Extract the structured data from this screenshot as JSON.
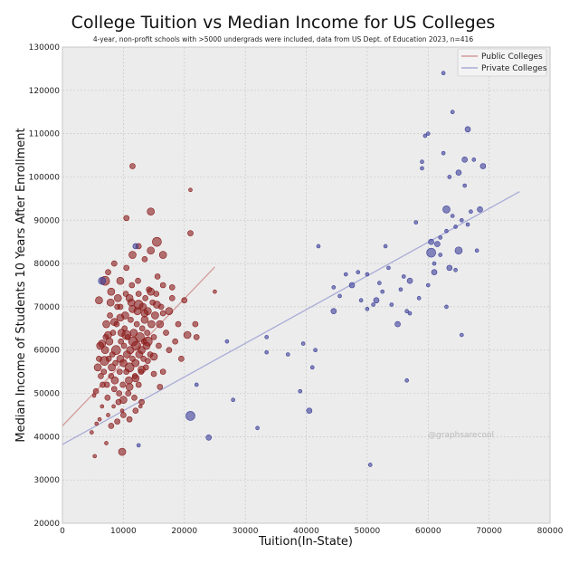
{
  "chart_data": {
    "type": "scatter",
    "title": "College Tuition vs Median Income for US Colleges",
    "subtitle": "4-year, non-profit schools with >5000 undergrads were included, data from US Dept. of Education 2023, n=416",
    "xlabel": "Tuition(In-State)",
    "ylabel": "Median Income of Students 10 Years After Enrollment",
    "xlim": [
      0,
      80000
    ],
    "ylim": [
      20000,
      130000
    ],
    "xticks": [
      "0",
      "10000",
      "20000",
      "30000",
      "40000",
      "50000",
      "60000",
      "70000",
      "80000"
    ],
    "yticks": [
      "20000",
      "30000",
      "40000",
      "50000",
      "60000",
      "70000",
      "80000",
      "90000",
      "100000",
      "110000",
      "120000",
      "130000"
    ],
    "grid": true,
    "legend_position": "top-right",
    "watermark": "@graphsarecool",
    "series": [
      {
        "name": "Public Colleges",
        "color": "#8b1a1a",
        "trend_color": "#d49a9a",
        "trend": [
          [
            0,
            42500
          ],
          [
            25000,
            79200
          ]
        ],
        "points": [
          [
            5200,
            49500,
            2
          ],
          [
            5500,
            50500,
            3
          ],
          [
            5800,
            56000,
            4
          ],
          [
            6000,
            58000,
            3
          ],
          [
            6200,
            61000,
            4
          ],
          [
            6300,
            54000,
            3
          ],
          [
            6500,
            47000,
            2
          ],
          [
            6600,
            52000,
            3
          ],
          [
            6800,
            55000,
            3
          ],
          [
            6900,
            57500,
            5
          ],
          [
            7000,
            60000,
            4
          ],
          [
            7100,
            63000,
            3
          ],
          [
            7200,
            66000,
            4
          ],
          [
            7300,
            52000,
            3
          ],
          [
            7400,
            49000,
            3
          ],
          [
            7500,
            45000,
            2
          ],
          [
            7600,
            58000,
            3
          ],
          [
            7700,
            62000,
            4
          ],
          [
            7800,
            68000,
            3
          ],
          [
            7900,
            71000,
            4
          ],
          [
            8000,
            54000,
            3
          ],
          [
            8100,
            56000,
            4
          ],
          [
            8200,
            59000,
            3
          ],
          [
            8300,
            64000,
            3
          ],
          [
            8400,
            47000,
            2
          ],
          [
            8500,
            51000,
            3
          ],
          [
            8600,
            53000,
            4
          ],
          [
            8700,
            57000,
            3
          ],
          [
            8800,
            60000,
            5
          ],
          [
            8900,
            66000,
            3
          ],
          [
            9000,
            70000,
            3
          ],
          [
            9100,
            72000,
            4
          ],
          [
            9200,
            48000,
            3
          ],
          [
            9300,
            50000,
            3
          ],
          [
            9400,
            55000,
            3
          ],
          [
            9500,
            58000,
            4
          ],
          [
            9600,
            62000,
            3
          ],
          [
            9700,
            64000,
            4
          ],
          [
            9800,
            46000,
            2
          ],
          [
            9900,
            52000,
            3
          ],
          [
            10000,
            57000,
            4
          ],
          [
            10100,
            61000,
            3
          ],
          [
            10200,
            65000,
            3
          ],
          [
            10300,
            68000,
            4
          ],
          [
            10400,
            73000,
            3
          ],
          [
            10500,
            55000,
            3
          ],
          [
            10600,
            59000,
            4
          ],
          [
            10700,
            63000,
            3
          ],
          [
            10800,
            50000,
            3
          ],
          [
            10900,
            53000,
            4
          ],
          [
            11000,
            56000,
            5
          ],
          [
            11100,
            60000,
            4
          ],
          [
            11200,
            67000,
            3
          ],
          [
            11300,
            71000,
            4
          ],
          [
            11400,
            75000,
            3
          ],
          [
            11500,
            58000,
            3
          ],
          [
            11600,
            62000,
            5
          ],
          [
            11700,
            64000,
            4
          ],
          [
            11800,
            49000,
            3
          ],
          [
            11900,
            54000,
            3
          ],
          [
            12000,
            57000,
            4
          ],
          [
            12100,
            61000,
            5
          ],
          [
            12200,
            66000,
            3
          ],
          [
            12300,
            69000,
            4
          ],
          [
            12400,
            76000,
            3
          ],
          [
            12500,
            52000,
            3
          ],
          [
            12600,
            59000,
            4
          ],
          [
            12700,
            63000,
            5
          ],
          [
            12800,
            47000,
            2
          ],
          [
            12900,
            55000,
            3
          ],
          [
            13000,
            60000,
            4
          ],
          [
            13100,
            65000,
            3
          ],
          [
            13200,
            70000,
            4
          ],
          [
            13300,
            58000,
            3
          ],
          [
            13400,
            62000,
            3
          ],
          [
            13500,
            67000,
            4
          ],
          [
            13600,
            72000,
            3
          ],
          [
            13700,
            56000,
            3
          ],
          [
            13800,
            61000,
            4
          ],
          [
            13900,
            64000,
            3
          ],
          [
            14000,
            69000,
            4
          ],
          [
            14200,
            74000,
            3
          ],
          [
            14400,
            59000,
            3
          ],
          [
            14600,
            66000,
            4
          ],
          [
            14800,
            71000,
            3
          ],
          [
            15000,
            63000,
            3
          ],
          [
            15200,
            68000,
            4
          ],
          [
            15400,
            73000,
            3
          ],
          [
            15600,
            77000,
            3
          ],
          [
            15800,
            61000,
            3
          ],
          [
            16000,
            66000,
            4
          ],
          [
            16200,
            70000,
            3
          ],
          [
            16500,
            75000,
            3
          ],
          [
            17000,
            64000,
            3
          ],
          [
            17500,
            69000,
            4
          ],
          [
            18000,
            72000,
            3
          ],
          [
            18500,
            62000,
            3
          ],
          [
            19000,
            66000,
            3
          ],
          [
            6100,
            44000,
            2
          ],
          [
            5600,
            43000,
            2
          ],
          [
            4800,
            41000,
            2
          ],
          [
            5300,
            35500,
            2
          ],
          [
            7200,
            38500,
            2
          ],
          [
            8000,
            42500,
            3
          ],
          [
            9000,
            43500,
            3
          ],
          [
            10000,
            45000,
            3
          ],
          [
            11000,
            44000,
            3
          ],
          [
            12000,
            46000,
            3
          ],
          [
            13000,
            48000,
            3
          ],
          [
            7500,
            78000,
            3
          ],
          [
            8500,
            80000,
            3
          ],
          [
            9500,
            76000,
            4
          ],
          [
            10500,
            79000,
            3
          ],
          [
            11500,
            82000,
            4
          ],
          [
            12500,
            84000,
            3
          ],
          [
            13500,
            81000,
            3
          ],
          [
            14500,
            83000,
            4
          ],
          [
            15500,
            85000,
            5
          ],
          [
            16500,
            82000,
            4
          ],
          [
            9800,
            36500,
            4
          ],
          [
            10500,
            90500,
            3
          ],
          [
            11500,
            102500,
            3
          ],
          [
            14500,
            92000,
            4
          ],
          [
            21000,
            97000,
            2
          ],
          [
            21000,
            87000,
            3
          ],
          [
            25000,
            73500,
            2
          ],
          [
            20500,
            63500,
            4
          ],
          [
            21800,
            66000,
            3
          ],
          [
            22000,
            63000,
            3
          ],
          [
            7000,
            76000,
            5
          ],
          [
            6000,
            71500,
            4
          ],
          [
            8000,
            73500,
            4
          ],
          [
            9500,
            70000,
            3
          ],
          [
            11000,
            72000,
            4
          ],
          [
            12500,
            73000,
            3
          ],
          [
            14000,
            62000,
            5
          ],
          [
            15000,
            58500,
            4
          ],
          [
            16500,
            55000,
            3
          ],
          [
            17500,
            60000,
            3
          ],
          [
            19500,
            58000,
            3
          ],
          [
            6500,
            61500,
            4
          ],
          [
            7500,
            63500,
            4
          ],
          [
            8500,
            66500,
            4
          ],
          [
            9500,
            67500,
            4
          ],
          [
            10500,
            63500,
            5
          ],
          [
            11500,
            69500,
            4
          ],
          [
            12500,
            70500,
            5
          ],
          [
            13500,
            68500,
            4
          ],
          [
            14500,
            73500,
            4
          ],
          [
            15500,
            70500,
            4
          ],
          [
            16500,
            68500,
            3
          ],
          [
            18000,
            74500,
            3
          ],
          [
            20000,
            71500,
            3
          ],
          [
            10000,
            48500,
            4
          ],
          [
            11000,
            51500,
            4
          ],
          [
            12000,
            53500,
            4
          ],
          [
            13000,
            55500,
            4
          ],
          [
            14000,
            57500,
            3
          ],
          [
            15000,
            54500,
            3
          ],
          [
            16000,
            51500,
            3
          ]
        ]
      },
      {
        "name": "Private Colleges",
        "color": "#3b3d99",
        "trend_color": "#a9acd6",
        "trend": [
          [
            0,
            38200
          ],
          [
            75000,
            96600
          ]
        ],
        "points": [
          [
            6500,
            76000,
            4
          ],
          [
            12000,
            84000,
            3
          ],
          [
            12500,
            38000,
            2
          ],
          [
            21000,
            44800,
            5
          ],
          [
            24000,
            39800,
            3
          ],
          [
            22000,
            52000,
            2
          ],
          [
            27000,
            62000,
            2
          ],
          [
            28000,
            48500,
            2
          ],
          [
            32000,
            42000,
            2
          ],
          [
            33500,
            63000,
            2
          ],
          [
            33500,
            59500,
            2
          ],
          [
            37000,
            59000,
            2
          ],
          [
            39000,
            50500,
            2
          ],
          [
            39500,
            61500,
            2
          ],
          [
            41000,
            56000,
            2
          ],
          [
            41500,
            60000,
            2
          ],
          [
            40500,
            46000,
            3
          ],
          [
            42000,
            84000,
            2
          ],
          [
            44500,
            74500,
            2
          ],
          [
            44500,
            69000,
            3
          ],
          [
            46500,
            77500,
            2
          ],
          [
            47500,
            75000,
            3
          ],
          [
            48500,
            78000,
            2
          ],
          [
            49000,
            71500,
            2
          ],
          [
            50000,
            69500,
            2
          ],
          [
            50500,
            33500,
            2
          ],
          [
            51000,
            70500,
            2
          ],
          [
            51500,
            71500,
            3
          ],
          [
            52500,
            73500,
            2
          ],
          [
            53000,
            84000,
            2
          ],
          [
            53500,
            79000,
            2
          ],
          [
            54000,
            70500,
            2
          ],
          [
            55000,
            66000,
            3
          ],
          [
            56000,
            77000,
            2
          ],
          [
            56500,
            53000,
            2
          ],
          [
            57000,
            76000,
            3
          ],
          [
            57000,
            68500,
            2
          ],
          [
            58000,
            89500,
            2
          ],
          [
            59000,
            102000,
            2
          ],
          [
            59000,
            103500,
            2
          ],
          [
            59500,
            109500,
            2
          ],
          [
            60000,
            110000,
            2
          ],
          [
            60000,
            75000,
            2
          ],
          [
            60500,
            82500,
            5
          ],
          [
            61000,
            80000,
            2
          ],
          [
            61500,
            84500,
            3
          ],
          [
            62000,
            86000,
            2
          ],
          [
            62500,
            105500,
            2
          ],
          [
            62500,
            124000,
            2
          ],
          [
            63000,
            87500,
            2
          ],
          [
            63000,
            92500,
            4
          ],
          [
            63500,
            79000,
            3
          ],
          [
            63500,
            100000,
            2
          ],
          [
            64000,
            91000,
            2
          ],
          [
            64000,
            115000,
            2
          ],
          [
            64500,
            88500,
            2
          ],
          [
            64500,
            78500,
            2
          ],
          [
            65000,
            101000,
            3
          ],
          [
            65000,
            83000,
            4
          ],
          [
            65500,
            90000,
            2
          ],
          [
            65500,
            63500,
            2
          ],
          [
            66000,
            98000,
            2
          ],
          [
            66000,
            104000,
            3
          ],
          [
            66500,
            111000,
            3
          ],
          [
            67000,
            92000,
            2
          ],
          [
            67500,
            104000,
            2
          ],
          [
            68000,
            83000,
            2
          ],
          [
            68500,
            92500,
            3
          ],
          [
            69000,
            102500,
            3
          ],
          [
            61000,
            78000,
            3
          ],
          [
            58500,
            72000,
            2
          ],
          [
            56500,
            69000,
            2
          ],
          [
            55500,
            74000,
            2
          ],
          [
            63000,
            70000,
            2
          ],
          [
            60500,
            85000,
            3
          ],
          [
            52000,
            75500,
            2
          ],
          [
            50000,
            77500,
            2
          ],
          [
            45500,
            72500,
            2
          ],
          [
            62000,
            82000,
            2
          ],
          [
            66500,
            89000,
            2
          ]
        ]
      }
    ]
  }
}
